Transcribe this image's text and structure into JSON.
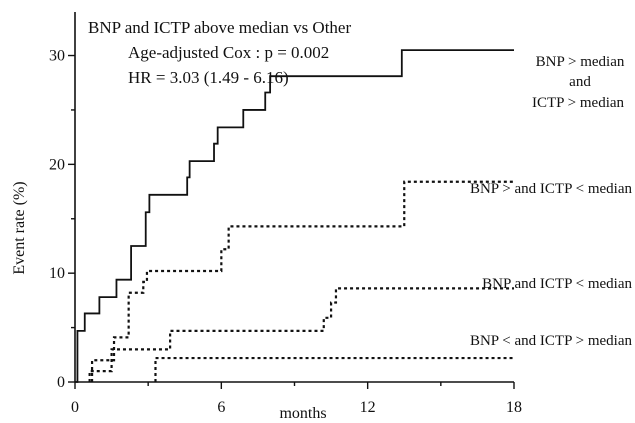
{
  "chart_data": {
    "type": "line",
    "title": "",
    "annotations": [
      "BNP and ICTP above median vs Other",
      "Age-adjusted Cox : p = 0.002",
      "HR = 3.03 (1.49 - 6.16)"
    ],
    "xlabel": "months",
    "ylabel": "Event rate (%)",
    "xlim": [
      0,
      18
    ],
    "ylim": [
      0,
      34
    ],
    "xticks": [
      0,
      6,
      12,
      18
    ],
    "yticks": [
      0,
      10,
      20,
      30
    ],
    "grid": false,
    "legend": "none",
    "series": [
      {
        "labels": [
          "BNP > median",
          "and",
          "ICTP > median"
        ],
        "style": "solid",
        "x": [
          0,
          0.1,
          0.4,
          1.0,
          1.7,
          2.3,
          2.9,
          3.05,
          4.6,
          4.7,
          5.7,
          5.85,
          6.05,
          6.9,
          7.8,
          8.0,
          13.4,
          18.0
        ],
        "y": [
          0,
          4.7,
          6.3,
          7.8,
          9.4,
          12.5,
          15.6,
          17.2,
          18.8,
          20.3,
          21.9,
          23.4,
          23.4,
          25.0,
          26.6,
          28.1,
          30.5,
          30.5
        ]
      },
      {
        "labels": [
          "BNP > and  ICTP < median"
        ],
        "style": "dotted",
        "x": [
          0.7,
          1.6,
          2.2,
          2.8,
          2.95,
          6.0,
          6.3,
          13.5,
          18.0
        ],
        "y": [
          2.0,
          4.1,
          8.2,
          9.2,
          10.2,
          12.2,
          14.3,
          18.4,
          18.4
        ],
        "notes": "step function"
      },
      {
        "labels": [
          "BNP and  ICTP < median"
        ],
        "style": "dotted",
        "x": [
          0.6,
          1.5,
          3.9,
          10.2,
          10.5,
          10.7,
          18.0
        ],
        "y": [
          1.0,
          3.0,
          4.7,
          5.9,
          7.3,
          8.6,
          8.6
        ]
      },
      {
        "labels": [
          "BNP < and  ICTP > median"
        ],
        "style": "dotted",
        "x": [
          3.3,
          18.0
        ],
        "y": [
          2.2,
          2.2
        ]
      }
    ]
  }
}
